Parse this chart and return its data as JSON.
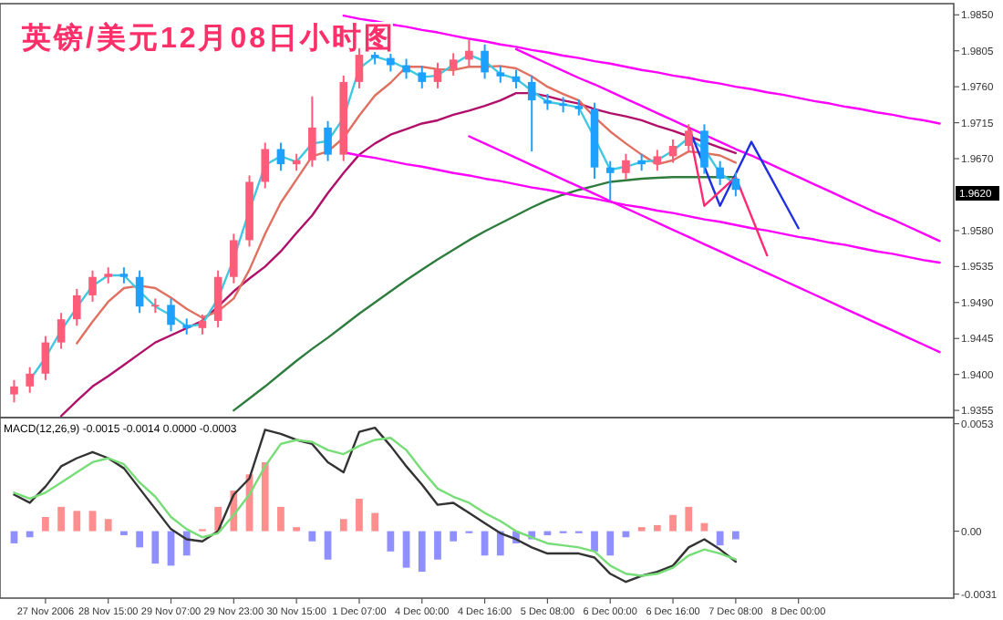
{
  "chart_data": [
    {
      "type": "candlestick",
      "title": "英镑/美元12月08日小时图",
      "tick_labels": "y",
      "ylim": [
        1.9346,
        1.9864
      ],
      "categories": [
        null,
        null,
        null,
        null,
        null,
        null,
        null,
        null,
        null,
        null,
        null,
        null,
        null,
        null,
        null,
        null,
        null,
        null,
        null,
        null,
        null,
        null,
        null,
        null,
        null,
        null,
        null,
        null,
        null,
        null,
        null,
        null,
        null,
        null,
        null,
        null,
        null,
        null,
        null,
        null,
        null,
        null,
        null,
        null,
        null,
        null,
        null,
        null,
        null,
        null,
        null,
        null,
        null,
        null,
        null,
        null,
        null,
        null,
        null,
        null
      ],
      "yticks": [
        {
          "value": 1.9355,
          "label": "1.9355"
        },
        {
          "value": 1.94,
          "label": "1.9400"
        },
        {
          "value": 1.9445,
          "label": "1.9445"
        },
        {
          "value": 1.949,
          "label": "1.9490"
        },
        {
          "value": 1.9535,
          "label": "1.9535"
        },
        {
          "value": 1.958,
          "label": "1.9580"
        },
        {
          "value": 1.967,
          "label": "1.9670"
        },
        {
          "value": 1.9715,
          "label": "1.9715"
        },
        {
          "value": 1.976,
          "label": "1.9760"
        },
        {
          "value": 1.9805,
          "label": "1.9805"
        },
        {
          "value": 1.985,
          "label": "1.9850"
        }
      ],
      "annotations": [
        "1.9620"
      ],
      "ohlc": [
        [
          1.9375,
          1.9393,
          1.9365,
          1.9385
        ],
        [
          1.9385,
          1.9409,
          1.9377,
          1.9401
        ],
        [
          1.9401,
          1.9448,
          1.9393,
          1.944
        ],
        [
          1.944,
          1.9477,
          1.9432,
          1.9469
        ],
        [
          1.9469,
          1.9507,
          1.9461,
          1.9499
        ],
        [
          1.9499,
          1.953,
          1.9491,
          1.9522
        ],
        [
          1.9522,
          1.9534,
          1.9514,
          1.9526
        ],
        [
          1.9526,
          1.9534,
          1.9514,
          1.9522
        ],
        [
          1.9522,
          1.953,
          1.9477,
          1.9485
        ],
        [
          1.9485,
          1.9495,
          1.9477,
          1.9487
        ],
        [
          1.9487,
          1.9495,
          1.9454,
          1.9462
        ],
        [
          1.9462,
          1.947,
          1.945,
          1.9458
        ],
        [
          1.9458,
          1.9475,
          1.945,
          1.9467
        ],
        [
          1.9467,
          1.953,
          1.9459,
          1.9522
        ],
        [
          1.9522,
          1.9576,
          1.9514,
          1.9568
        ],
        [
          1.9568,
          1.9649,
          1.956,
          1.9641
        ],
        [
          1.9641,
          1.969,
          1.9633,
          1.9682
        ],
        [
          1.9682,
          1.969,
          1.9655,
          1.9663
        ],
        [
          1.9663,
          1.9676,
          1.9655,
          1.9668
        ],
        [
          1.9668,
          1.9748,
          1.966,
          1.9709
        ],
        [
          1.9709,
          1.9717,
          1.9667,
          1.9675
        ],
        [
          1.9675,
          1.9774,
          1.9667,
          1.9766
        ],
        [
          1.9766,
          1.9808,
          1.9758,
          1.98
        ],
        [
          1.98,
          1.9808,
          1.9788,
          1.9796
        ],
        [
          1.9796,
          1.9804,
          1.9779,
          1.9787
        ],
        [
          1.9787,
          1.9795,
          1.977,
          1.9778
        ],
        [
          1.9778,
          1.9786,
          1.9758,
          1.9766
        ],
        [
          1.9766,
          1.979,
          1.9758,
          1.9782
        ],
        [
          1.9782,
          1.9802,
          1.9774,
          1.9794
        ],
        [
          1.9794,
          1.9819,
          1.9786,
          1.9805
        ],
        [
          1.9805,
          1.9813,
          1.977,
          1.9778
        ],
        [
          1.9778,
          1.9786,
          1.9765,
          1.9773
        ],
        [
          1.9773,
          1.9781,
          1.9758,
          1.9766
        ],
        [
          1.9766,
          1.9774,
          1.9679,
          1.9743
        ],
        [
          1.9743,
          1.9751,
          1.9731,
          1.9739
        ],
        [
          1.9739,
          1.9747,
          1.9728,
          1.9736
        ],
        [
          1.9736,
          1.9744,
          1.9724,
          1.9732
        ],
        [
          1.9732,
          1.974,
          1.9645,
          1.9659
        ],
        [
          1.9659,
          1.9667,
          1.9618,
          1.9652
        ],
        [
          1.9652,
          1.9676,
          1.9644,
          1.9668
        ],
        [
          1.9668,
          1.9676,
          1.9655,
          1.9663
        ],
        [
          1.9663,
          1.9681,
          1.9655,
          1.9673
        ],
        [
          1.9673,
          1.9694,
          1.9665,
          1.9686
        ],
        [
          1.9686,
          1.9713,
          1.9678,
          1.9705
        ],
        [
          1.9705,
          1.9713,
          1.9651,
          1.9659
        ],
        [
          1.9659,
          1.9667,
          1.9637,
          1.9645
        ],
        [
          1.9645,
          1.9653,
          1.9623,
          1.9631
        ],
        null,
        null,
        null,
        null,
        null,
        null,
        null,
        null,
        null,
        null,
        null,
        null,
        null
      ],
      "colors": [
        "#ff5c7a",
        "#ff5c7a",
        "#ff5c7a",
        "#ff5c7a",
        "#ff5c7a",
        "#ff5c7a",
        "#ff5c7a",
        "#1ea0ff",
        "#1ea0ff",
        "#ff5c7a",
        "#1ea0ff",
        "#1ea0ff",
        "#ff5c7a",
        "#ff5c7a",
        "#ff5c7a",
        "#ff5c7a",
        "#ff5c7a",
        "#1ea0ff",
        "#ff5c7a",
        "#ff5c7a",
        "#1ea0ff",
        "#ff5c7a",
        "#ff5c7a",
        "#1ea0ff",
        "#1ea0ff",
        "#1ea0ff",
        "#1ea0ff",
        "#ff5c7a",
        "#ff5c7a",
        "#ff5c7a",
        "#1ea0ff",
        "#1ea0ff",
        "#1ea0ff",
        "#1ea0ff",
        "#1ea0ff",
        "#1ea0ff",
        "#1ea0ff",
        "#1ea0ff",
        "#1ea0ff",
        "#ff5c7a",
        "#1ea0ff",
        "#ff5c7a",
        "#ff5c7a",
        "#ff5c7a",
        "#1ea0ff",
        "#1ea0ff",
        "#1ea0ff",
        null,
        null,
        null,
        null,
        null,
        null,
        null,
        null,
        null,
        null,
        null,
        null,
        null
      ],
      "series": [
        {
          "type": "line",
          "color": "#2e7d3e",
          "values": [
            null,
            null,
            null,
            null,
            null,
            null,
            null,
            null,
            null,
            null,
            null,
            null,
            null,
            null,
            1.9355,
            1.937,
            1.9385,
            1.9401,
            1.9417,
            1.9432,
            1.9446,
            1.9461,
            1.9476,
            1.949,
            1.9504,
            1.9518,
            1.9531,
            1.9544,
            1.9556,
            1.9568,
            1.9579,
            1.9589,
            1.9599,
            1.9609,
            1.9618,
            1.9625,
            1.9631,
            1.9636,
            1.9641,
            1.9643,
            1.9645,
            1.9646,
            1.9647,
            1.9647,
            1.9647,
            1.9647,
            1.9647,
            null,
            null,
            null,
            null,
            null,
            null,
            null,
            null,
            null,
            null,
            null,
            null,
            null
          ]
        },
        {
          "type": "line",
          "color": "#b0106a",
          "values": [
            null,
            null,
            null,
            1.9348,
            1.9367,
            1.9385,
            1.9398,
            1.9412,
            1.9426,
            1.944,
            1.9449,
            1.9458,
            1.9467,
            1.9485,
            1.9504,
            1.952,
            1.9535,
            1.9554,
            1.9577,
            1.9599,
            1.9627,
            1.9652,
            1.9675,
            1.9689,
            1.97,
            1.9707,
            1.9714,
            1.9718,
            1.9725,
            1.973,
            1.9736,
            1.9743,
            1.9752,
            1.9752,
            1.9748,
            1.9743,
            1.9739,
            1.9732,
            1.9727,
            1.9723,
            1.9718,
            1.9711,
            1.9705,
            1.9698,
            1.9691,
            1.9684,
            1.9677,
            null,
            null,
            null,
            null,
            null,
            null,
            null,
            null,
            null,
            null,
            null,
            null,
            null
          ]
        },
        {
          "type": "line",
          "color": "#e07060",
          "values": [
            null,
            null,
            null,
            null,
            1.9439,
            1.9466,
            1.9491,
            1.9508,
            1.9511,
            1.9508,
            1.9496,
            1.9482,
            1.9471,
            1.9479,
            1.9495,
            1.9531,
            1.9576,
            1.9615,
            1.9644,
            1.9673,
            1.9679,
            1.9696,
            1.9724,
            1.9749,
            1.9765,
            1.9785,
            1.9785,
            1.9782,
            1.9781,
            1.9785,
            1.9785,
            1.9786,
            1.9783,
            1.9773,
            1.976,
            1.9751,
            1.9743,
            1.9722,
            1.9704,
            1.9689,
            1.9675,
            1.9663,
            1.9668,
            1.9679,
            1.9677,
            1.9674,
            1.9665,
            null,
            null,
            null,
            null,
            null,
            null,
            null,
            null,
            null,
            null,
            null,
            null,
            null
          ]
        },
        {
          "type": "line",
          "color": "#40c8e0",
          "values": [
            null,
            1.9393,
            1.9421,
            1.9455,
            1.9484,
            1.9511,
            1.9524,
            1.9524,
            1.9504,
            1.9485,
            1.9474,
            1.946,
            1.9463,
            1.9495,
            1.9545,
            1.9605,
            1.9662,
            1.9673,
            1.9666,
            1.9689,
            1.9692,
            1.9721,
            1.9783,
            1.9798,
            1.9792,
            1.9783,
            1.9772,
            1.9774,
            1.9788,
            1.98,
            1.9792,
            1.9776,
            1.977,
            1.9755,
            1.9741,
            1.9738,
            1.9734,
            1.9696,
            1.9656,
            1.966,
            1.9666,
            1.9668,
            1.968,
            1.9696,
            1.9682,
            1.9652,
            1.9638,
            null,
            null,
            null,
            null,
            null,
            null,
            null,
            null,
            null,
            null,
            null,
            null,
            null
          ]
        },
        {
          "type": "line",
          "color": "#ff00ff",
          "values": [
            null,
            null,
            null,
            null,
            null,
            null,
            null,
            null,
            null,
            null,
            null,
            null,
            null,
            null,
            null,
            null,
            null,
            null,
            null,
            null,
            null,
            1.9849,
            1.9845,
            1.9842,
            1.9838,
            1.9835,
            1.9831,
            1.9828,
            1.9824,
            1.982,
            1.9817,
            1.9813,
            1.981,
            1.9806,
            1.9803,
            1.9799,
            1.9796,
            1.9792,
            1.9789,
            1.9785,
            1.9781,
            1.9778,
            1.9774,
            1.9771,
            1.9767,
            1.9764,
            1.976,
            1.9757,
            1.9753,
            1.975,
            1.9746,
            1.9742,
            1.9739,
            1.9735,
            1.9732,
            1.9728,
            1.9725,
            1.9721,
            1.9718,
            1.9714
          ]
        },
        {
          "type": "line",
          "color": "#ff00ff",
          "values": [
            null,
            null,
            null,
            null,
            null,
            null,
            null,
            null,
            null,
            null,
            null,
            null,
            null,
            null,
            null,
            null,
            null,
            null,
            null,
            null,
            null,
            null,
            null,
            null,
            null,
            null,
            null,
            null,
            null,
            null,
            null,
            null,
            1.9807,
            1.9798,
            1.9789,
            1.978,
            1.9771,
            1.9763,
            1.9754,
            1.9745,
            1.9736,
            1.9727,
            1.9718,
            1.9709,
            1.97,
            1.9691,
            1.9682,
            1.9674,
            1.9665,
            1.9656,
            1.9647,
            1.9638,
            1.9629,
            1.962,
            1.9611,
            1.9602,
            1.9594,
            1.9585,
            1.9576,
            1.9567
          ]
        },
        {
          "type": "line",
          "color": "#ff00ff",
          "values": [
            null,
            null,
            null,
            null,
            null,
            null,
            null,
            null,
            null,
            null,
            null,
            null,
            null,
            null,
            null,
            null,
            null,
            null,
            null,
            null,
            null,
            null,
            null,
            null,
            null,
            null,
            null,
            null,
            null,
            1.9698,
            1.9689,
            1.968,
            1.9671,
            1.9662,
            1.9653,
            1.9644,
            1.9635,
            1.9626,
            1.9617,
            1.9608,
            1.9599,
            1.959,
            1.9581,
            1.9572,
            1.9563,
            1.9554,
            1.9545,
            1.9536,
            1.9527,
            1.9518,
            1.9509,
            1.95,
            1.9491,
            1.9482,
            1.9473,
            1.9464,
            1.9455,
            1.9446,
            1.9437,
            1.9428
          ]
        },
        {
          "type": "line",
          "color": "#ff00ff",
          "values": [
            null,
            null,
            null,
            null,
            null,
            null,
            null,
            null,
            null,
            null,
            null,
            null,
            null,
            null,
            null,
            null,
            null,
            null,
            null,
            null,
            null,
            1.9678,
            1.9674,
            1.9671,
            1.9667,
            1.9663,
            1.966,
            1.9656,
            1.9652,
            1.9649,
            1.9645,
            1.9642,
            1.9638,
            1.9634,
            1.9631,
            1.9627,
            1.9623,
            1.962,
            1.9616,
            1.9612,
            1.9609,
            1.9605,
            1.9602,
            1.9598,
            1.9594,
            1.9591,
            1.9587,
            1.9583,
            1.958,
            1.9576,
            1.9572,
            1.9569,
            1.9565,
            1.9562,
            1.9558,
            1.9554,
            1.9551,
            1.9547,
            1.9543,
            1.954
          ]
        },
        {
          "type": "line",
          "color": "#2030e0",
          "values": [
            null,
            null,
            null,
            null,
            null,
            null,
            null,
            null,
            null,
            null,
            null,
            null,
            null,
            null,
            null,
            null,
            null,
            null,
            null,
            null,
            null,
            null,
            null,
            null,
            null,
            null,
            null,
            null,
            null,
            null,
            null,
            null,
            null,
            null,
            null,
            null,
            null,
            null,
            null,
            null,
            null,
            null,
            null,
            1.9709,
            1.966,
            1.9611,
            1.9651,
            1.9691,
            1.9655,
            1.9619,
            1.9583,
            null,
            null,
            null,
            null,
            null,
            null,
            null,
            null,
            null
          ]
        },
        {
          "type": "line",
          "color": "#ff2a70",
          "values": [
            null,
            null,
            null,
            null,
            null,
            null,
            null,
            null,
            null,
            null,
            null,
            null,
            null,
            null,
            null,
            null,
            null,
            null,
            null,
            null,
            null,
            null,
            null,
            null,
            null,
            null,
            null,
            null,
            null,
            null,
            null,
            null,
            null,
            null,
            null,
            null,
            null,
            null,
            null,
            null,
            null,
            null,
            null,
            1.9709,
            1.9611,
            1.9629,
            1.9647,
            1.9598,
            1.9549,
            null,
            null,
            null,
            null,
            null,
            null,
            null,
            null,
            null,
            null,
            null
          ]
        }
      ]
    },
    {
      "type": "bar",
      "title": "MACD(12,26,9) -0.0015 -0.0014 0.0000 -0.0003",
      "ylim": [
        -0.0033,
        0.0056
      ],
      "categories": [
        null,
        null,
        "27 Nov 2006",
        null,
        null,
        null,
        "28 Nov 15:00",
        null,
        null,
        null,
        "29 Nov 07:00",
        null,
        null,
        null,
        "29 Nov 23:00",
        null,
        null,
        null,
        "30 Nov 15:00",
        null,
        null,
        null,
        "1 Dec 07:00",
        null,
        null,
        null,
        "4 Dec 00:00",
        null,
        null,
        null,
        "4 Dec 16:00",
        null,
        null,
        null,
        "5 Dec 08:00",
        null,
        null,
        null,
        "6 Dec 00:00",
        null,
        null,
        null,
        "6 Dec 16:00",
        null,
        null,
        null,
        "7 Dec 08:00",
        null,
        null,
        null,
        "8 Dec 00:00",
        null,
        null,
        null,
        null,
        null,
        null,
        null,
        null,
        null
      ],
      "yticks": [
        {
          "value": 0.0053,
          "label": "0.0053"
        },
        {
          "value": 0,
          "label": "0.00"
        },
        {
          "value": -0.0031,
          "label": "-0.0031"
        }
      ],
      "series": [
        {
          "type": "bar",
          "values": [
            -0.0006,
            -0.0003,
            0.0007,
            0.0012,
            0.001,
            0.001,
            0.0006,
            -0.0002,
            -0.0008,
            -0.0016,
            -0.0017,
            -0.0012,
            0.0001,
            0.0012,
            0.002,
            0.0028,
            0.0034,
            0.0012,
            0.0002,
            -0.0005,
            -0.0014,
            0.0006,
            0.0016,
            0.0009,
            -0.001,
            -0.0018,
            -0.002,
            -0.0014,
            -0.0005,
            -0.0001,
            -0.0012,
            -0.0012,
            -0.0006,
            -0.0004,
            -0.0002,
            -0.0001,
            -0.0001,
            -0.001,
            -0.0012,
            -0.0003,
            0.0002,
            0.0003,
            0.0008,
            0.0012,
            0.0004,
            -0.0007,
            -0.0004,
            null,
            null,
            null,
            null,
            null,
            null,
            null,
            null,
            null,
            null,
            null,
            null,
            null
          ],
          "colors": [
            "#8f8fff",
            "#8f8fff",
            "#ff8f8f",
            "#ff8f8f",
            "#ff8f8f",
            "#ff8f8f",
            "#ff8f8f",
            "#8f8fff",
            "#8f8fff",
            "#8f8fff",
            "#8f8fff",
            "#8f8fff",
            "#ff8f8f",
            "#ff8f8f",
            "#ff8f8f",
            "#ff8f8f",
            "#ff8f8f",
            "#ff8f8f",
            "#ff8f8f",
            "#8f8fff",
            "#8f8fff",
            "#ff8f8f",
            "#ff8f8f",
            "#ff8f8f",
            "#8f8fff",
            "#8f8fff",
            "#8f8fff",
            "#8f8fff",
            "#8f8fff",
            "#8f8fff",
            "#8f8fff",
            "#8f8fff",
            "#8f8fff",
            "#8f8fff",
            "#8f8fff",
            "#8f8fff",
            "#8f8fff",
            "#8f8fff",
            "#8f8fff",
            "#8f8fff",
            "#ff8f8f",
            "#ff8f8f",
            "#ff8f8f",
            "#ff8f8f",
            "#ff8f8f",
            "#8f8fff",
            "#8f8fff",
            null,
            null,
            null,
            null,
            null,
            null,
            null,
            null,
            null,
            null,
            null,
            null,
            null
          ]
        },
        {
          "type": "line",
          "color": "#333333",
          "values": [
            0.0018,
            0.0014,
            0.0022,
            0.0032,
            0.0036,
            0.0039,
            0.0036,
            0.0031,
            0.0021,
            0.0011,
            0.0001,
            -0.0004,
            -0.0005,
            0,
            0.0018,
            0.0026,
            0.005,
            0.0048,
            0.0045,
            0.0043,
            0.0034,
            0.0029,
            0.0049,
            0.0051,
            0.0042,
            0.0032,
            0.0023,
            0.0013,
            0.0014,
            0.0009,
            0.0004,
            -0.0001,
            -0.0004,
            -0.0008,
            -0.0011,
            -0.0011,
            -0.0011,
            -0.0013,
            -0.0021,
            -0.0025,
            -0.0022,
            -0.002,
            -0.0017,
            -0.0008,
            -0.0004,
            -0.0009,
            -0.0015,
            null,
            null,
            null,
            null,
            null,
            null,
            null,
            null,
            null,
            null,
            null,
            null,
            null
          ]
        },
        {
          "type": "line",
          "color": "#77dd77",
          "values": [
            0.0019,
            0.0016,
            0.0019,
            0.0024,
            0.0029,
            0.0034,
            0.0036,
            0.0033,
            0.0024,
            0.0017,
            0.0007,
            0.0001,
            -0.0003,
            -0.0001,
            0.0008,
            0.0018,
            0.0032,
            0.0043,
            0.0045,
            0.0044,
            0.004,
            0.0038,
            0.0042,
            0.0045,
            0.0046,
            0.004,
            0.003,
            0.0021,
            0.0017,
            0.0014,
            0.0009,
            0.0005,
            0,
            -0.0003,
            -0.0006,
            -0.0007,
            -0.0008,
            -0.001,
            -0.0017,
            -0.0021,
            -0.0022,
            -0.0021,
            -0.0018,
            -0.0012,
            -0.0009,
            -0.0011,
            -0.0014,
            null,
            null,
            null,
            null,
            null,
            null,
            null,
            null,
            null,
            null,
            null,
            null,
            null
          ]
        }
      ]
    }
  ]
}
